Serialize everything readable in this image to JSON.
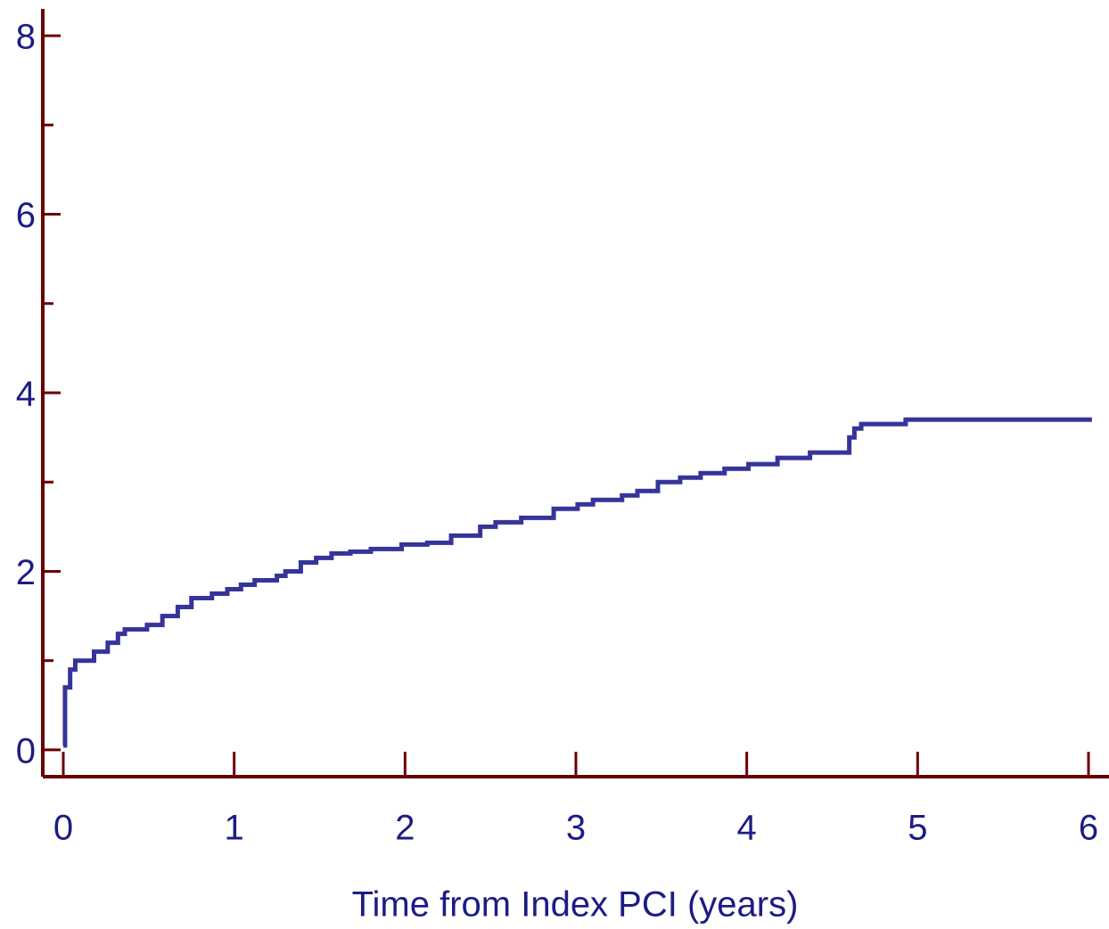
{
  "chart_data": {
    "type": "step-line",
    "x_label": "Time from Index PCI (years)",
    "xlim": [
      -0.12,
      6.12
    ],
    "xticks": [
      0,
      1,
      2,
      3,
      4,
      5,
      6
    ],
    "ylim": [
      -0.3,
      8.3
    ],
    "yticks": [
      0,
      2,
      4,
      6,
      8
    ],
    "yminorticks": [
      1,
      3,
      5,
      7
    ],
    "axis_color": "#6b0000",
    "series": [
      {
        "color": "#34349a",
        "x": [
          0,
          0.01,
          0.04,
          0.07,
          0.18,
          0.26,
          0.32,
          0.36,
          0.49,
          0.58,
          0.67,
          0.75,
          0.87,
          0.96,
          1.04,
          1.12,
          1.25,
          1.3,
          1.39,
          1.48,
          1.57,
          1.68,
          1.8,
          1.98,
          2.13,
          2.27,
          2.44,
          2.53,
          2.68,
          2.87,
          3.01,
          3.1,
          3.27,
          3.36,
          3.48,
          3.61,
          3.73,
          3.87,
          4.01,
          4.18,
          4.37,
          4.6,
          4.63,
          4.67,
          4.93,
          6.02
        ],
        "values": [
          0.05,
          0.7,
          0.9,
          1.0,
          1.1,
          1.2,
          1.3,
          1.35,
          1.4,
          1.5,
          1.6,
          1.7,
          1.75,
          1.8,
          1.85,
          1.9,
          1.95,
          2.0,
          2.1,
          2.15,
          2.2,
          2.22,
          2.25,
          2.3,
          2.32,
          2.4,
          2.5,
          2.55,
          2.6,
          2.7,
          2.75,
          2.8,
          2.85,
          2.9,
          3.0,
          3.05,
          3.1,
          3.15,
          3.2,
          3.27,
          3.33,
          3.5,
          3.6,
          3.65,
          3.7,
          3.7
        ]
      }
    ]
  }
}
